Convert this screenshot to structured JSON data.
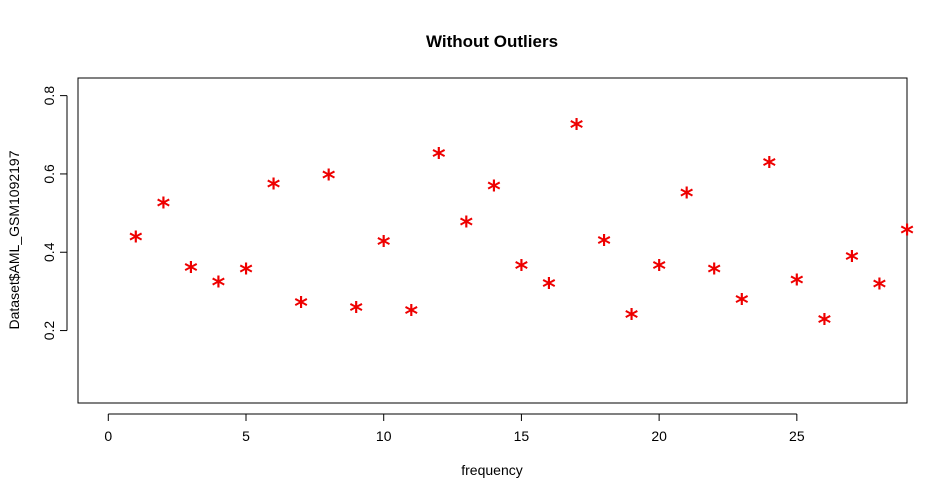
{
  "chart_data": {
    "type": "scatter",
    "title": "Without Outliers",
    "xlabel": "frequency",
    "ylabel": "Dataset$AML_GSM1092197",
    "xlim": [
      -1.1,
      29
    ],
    "ylim": [
      0.015,
      0.845
    ],
    "xticks": [
      0,
      5,
      10,
      15,
      20,
      25
    ],
    "yticks": [
      0.2,
      0.4,
      0.6,
      0.8
    ],
    "grid": false,
    "legend": "none",
    "marker": "*",
    "marker_color": "#ee0000",
    "points": [
      {
        "x": 1,
        "y": 0.445
      },
      {
        "x": 2,
        "y": 0.532
      },
      {
        "x": 3,
        "y": 0.368
      },
      {
        "x": 4,
        "y": 0.33
      },
      {
        "x": 5,
        "y": 0.363
      },
      {
        "x": 6,
        "y": 0.581
      },
      {
        "x": 7,
        "y": 0.278
      },
      {
        "x": 8,
        "y": 0.604
      },
      {
        "x": 9,
        "y": 0.265
      },
      {
        "x": 10,
        "y": 0.434
      },
      {
        "x": 11,
        "y": 0.257
      },
      {
        "x": 12,
        "y": 0.658
      },
      {
        "x": 13,
        "y": 0.483
      },
      {
        "x": 14,
        "y": 0.576
      },
      {
        "x": 15,
        "y": 0.373
      },
      {
        "x": 16,
        "y": 0.327
      },
      {
        "x": 17,
        "y": 0.733
      },
      {
        "x": 18,
        "y": 0.437
      },
      {
        "x": 19,
        "y": 0.247
      },
      {
        "x": 20,
        "y": 0.373
      },
      {
        "x": 21,
        "y": 0.558
      },
      {
        "x": 22,
        "y": 0.363
      },
      {
        "x": 23,
        "y": 0.286
      },
      {
        "x": 24,
        "y": 0.635
      },
      {
        "x": 25,
        "y": 0.335
      },
      {
        "x": 26,
        "y": 0.235
      },
      {
        "x": 27,
        "y": 0.396
      },
      {
        "x": 28,
        "y": 0.325
      },
      {
        "x": 29,
        "y": 0.463
      }
    ]
  }
}
